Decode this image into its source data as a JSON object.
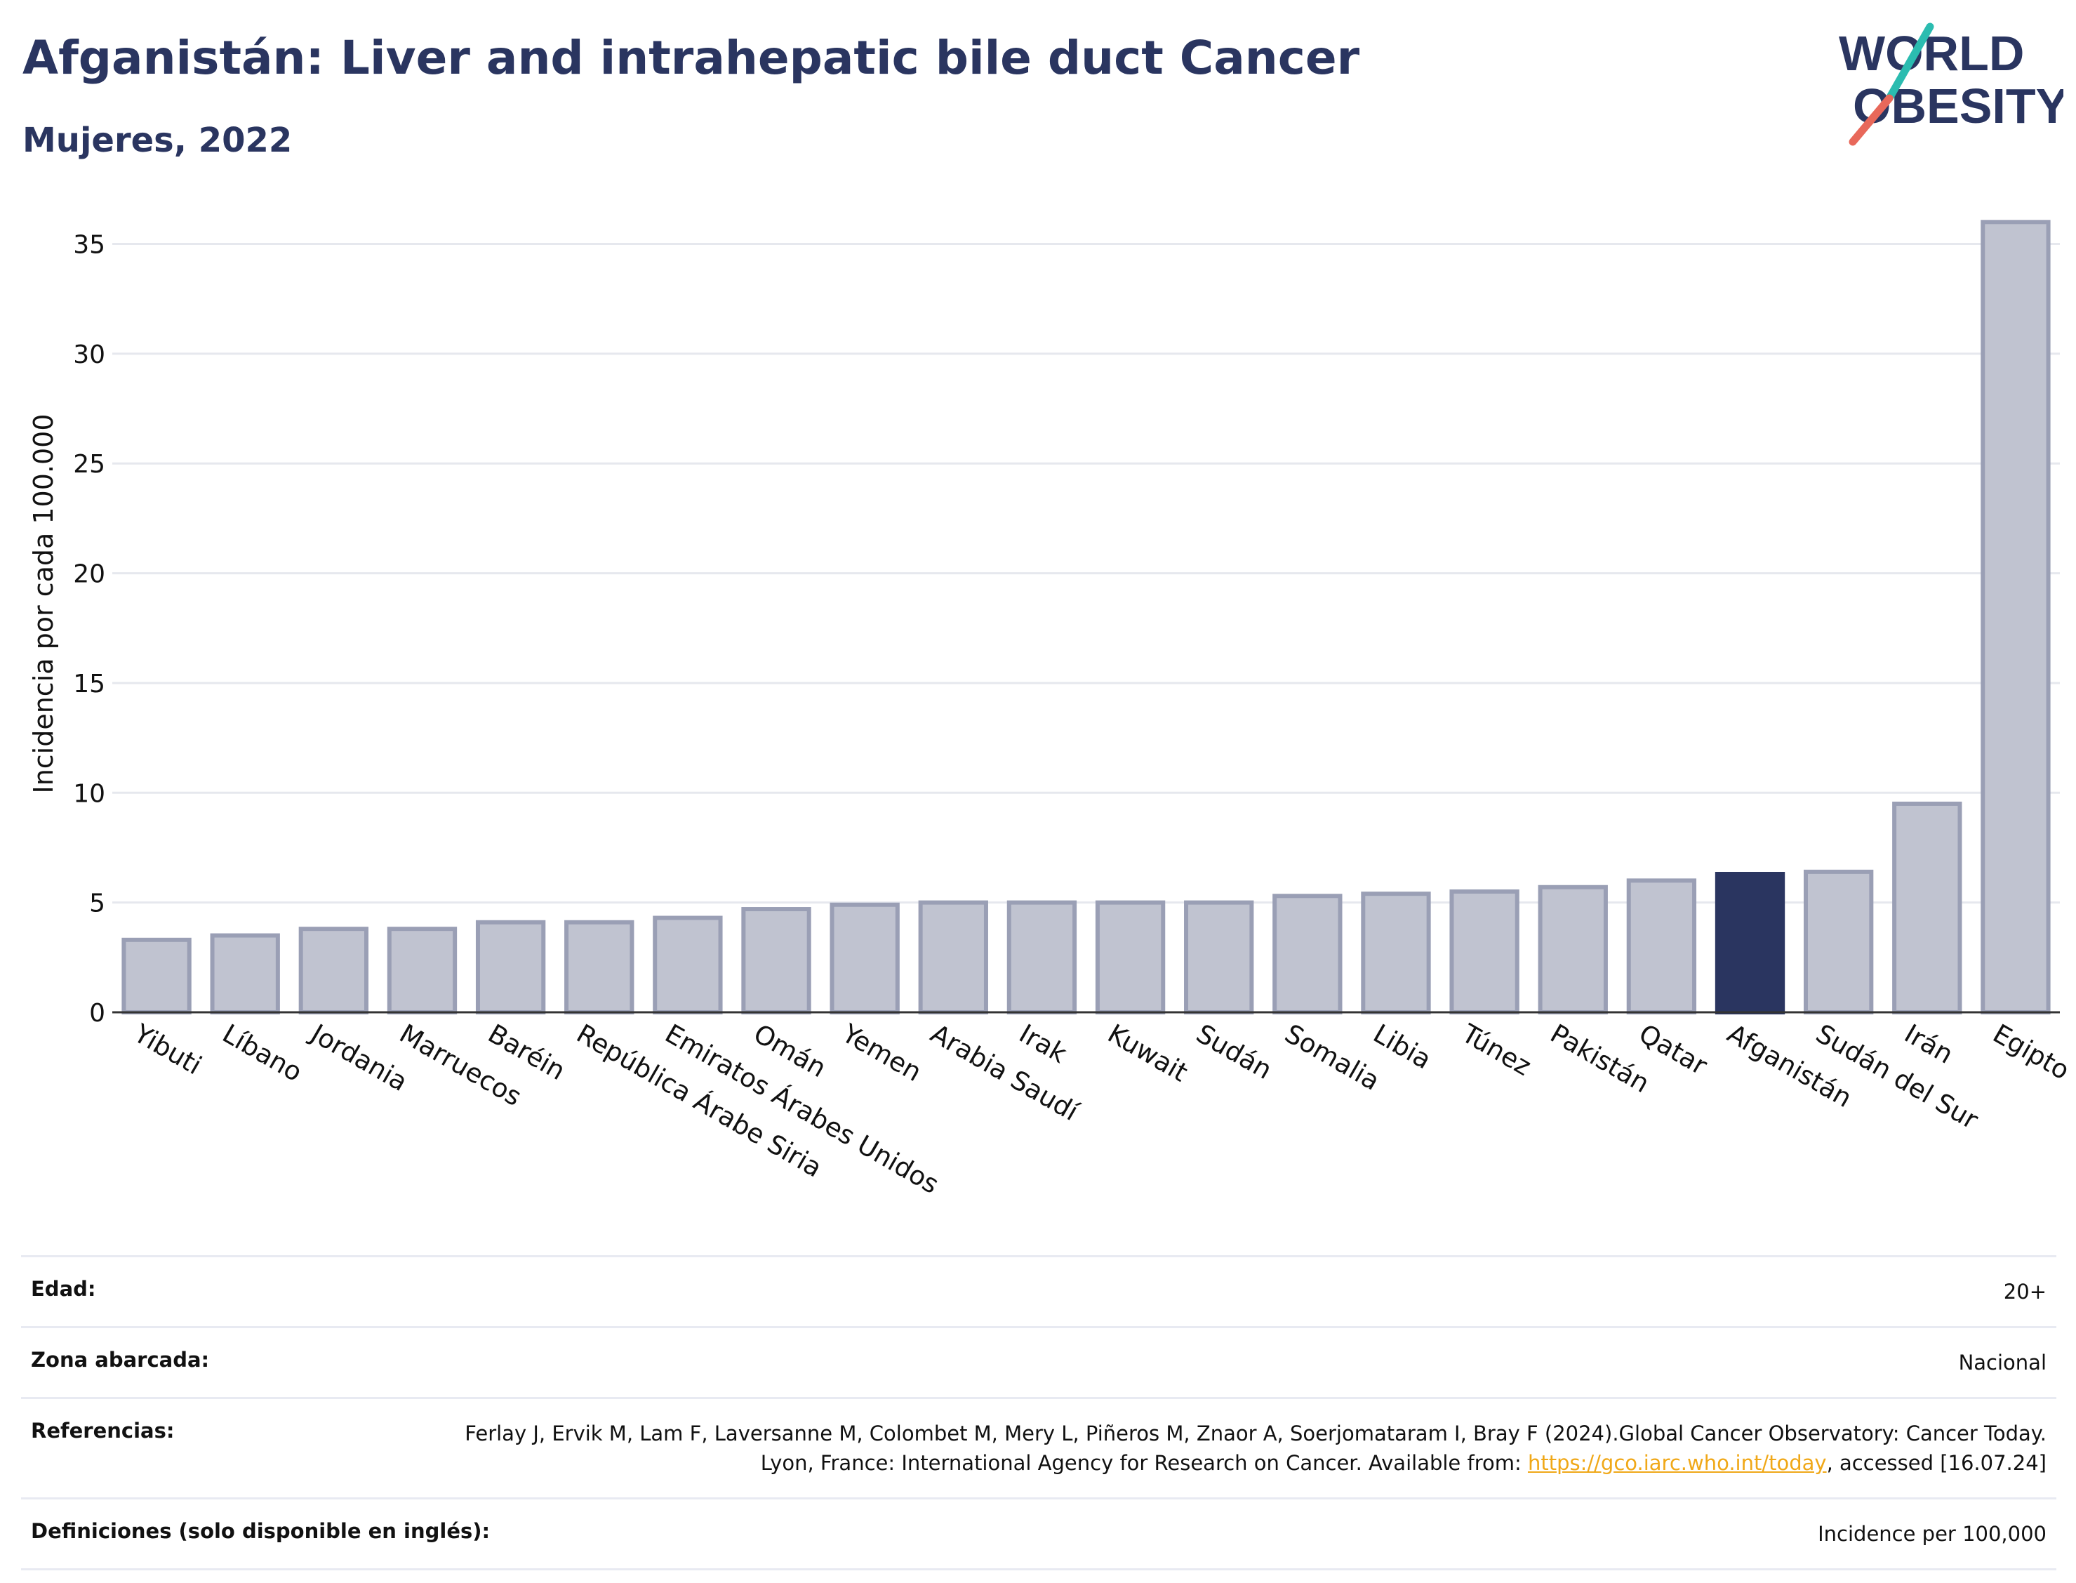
{
  "header": {
    "title": "Afganistán: Liver and intrahepatic bile duct Cancer",
    "subtitle": "Mujeres, 2022"
  },
  "logo": {
    "line1": "WORLD",
    "line2": "OBESITY"
  },
  "colors": {
    "bar": "#c0c3d0",
    "bar_stroke": "#9a9fb5",
    "highlight": "#2a3560",
    "title": "#2a3560",
    "link": "#f0a818"
  },
  "chart_data": {
    "type": "bar",
    "title": "Afganistán: Liver and intrahepatic bile duct Cancer",
    "subtitle": "Mujeres, 2022",
    "ylabel": "Incidencia por cada 100.000",
    "xlabel": "",
    "ylim": [
      0,
      37
    ],
    "yticks": [
      0,
      5,
      10,
      15,
      20,
      25,
      30,
      35
    ],
    "grid": true,
    "highlight": "Afganistán",
    "categories": [
      "Yibuti",
      "Líbano",
      "Jordania",
      "Marruecos",
      "Baréin",
      "República Árabe Siria",
      "Emiratos Árabes Unidos",
      "Omán",
      "Yemen",
      "Arabia Saudí",
      "Irak",
      "Kuwait",
      "Sudán",
      "Somalia",
      "Libia",
      "Túnez",
      "Pakistán",
      "Qatar",
      "Afganistán",
      "Sudán del Sur",
      "Irán",
      "Egipto"
    ],
    "values": [
      3.3,
      3.5,
      3.8,
      3.8,
      4.1,
      4.1,
      4.3,
      4.7,
      4.9,
      5.0,
      5.0,
      5.0,
      5.0,
      5.3,
      5.4,
      5.5,
      5.7,
      6.0,
      6.3,
      6.4,
      9.5,
      36.0
    ]
  },
  "info": {
    "rows": [
      {
        "label": "Edad:",
        "value": "20+"
      },
      {
        "label": "Zona abarcada:",
        "value": "Nacional"
      },
      {
        "label": "Referencias:",
        "value_before": "Ferlay J, Ervik M, Lam F, Laversanne M, Colombet M, Mery L, Piñeros M, Znaor A, Soerjomataram I, Bray F (2024).Global Cancer Observatory: Cancer Today. Lyon, France: International Agency for Research on Cancer. Available from: ",
        "link": "https://gco.iarc.who.int/today",
        "value_after": ", accessed [16.07.24]"
      },
      {
        "label": "Definiciones (solo disponible en inglés):",
        "value": "Incidence per 100,000"
      }
    ]
  }
}
